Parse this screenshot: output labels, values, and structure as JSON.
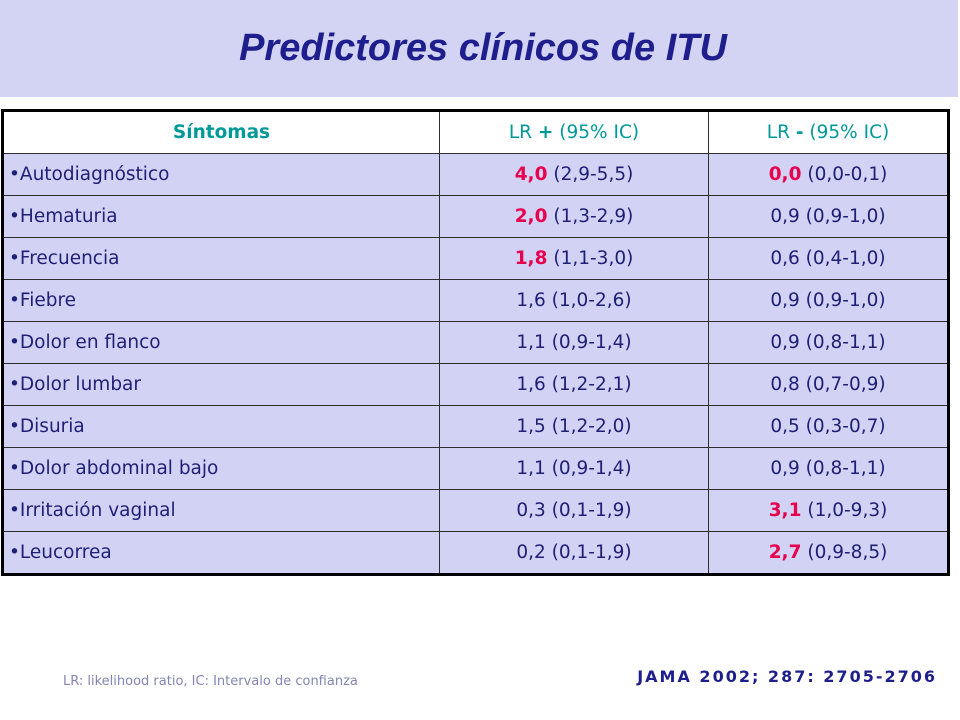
{
  "title": "Predictores clínicos de ITU",
  "table": {
    "headers": {
      "symptoms": "Síntomas",
      "lr_pos": {
        "prefix": "LR ",
        "sign": "+",
        "suffix": " (95% IC)"
      },
      "lr_neg": {
        "prefix": "LR ",
        "sign": "-",
        "suffix": " (95% IC)"
      }
    },
    "bullet": "•",
    "rows": [
      {
        "symptom": "Autodiagnóstico",
        "lr_pos": {
          "value": "4,0",
          "ci": "(2,9-5,5)",
          "highlight": true
        },
        "lr_neg": {
          "value": "0,0",
          "ci": "(0,0-0,1)",
          "highlight": true
        }
      },
      {
        "symptom": "Hematuria",
        "lr_pos": {
          "value": "2,0",
          "ci": "(1,3-2,9)",
          "highlight": true
        },
        "lr_neg": {
          "value": "0,9",
          "ci": "(0,9-1,0)",
          "highlight": false
        }
      },
      {
        "symptom": "Frecuencia",
        "lr_pos": {
          "value": "1,8",
          "ci": "(1,1-3,0)",
          "highlight": true
        },
        "lr_neg": {
          "value": "0,6",
          "ci": "(0,4-1,0)",
          "highlight": false
        }
      },
      {
        "symptom": "Fiebre",
        "lr_pos": {
          "value": "1,6",
          "ci": "(1,0-2,6)",
          "highlight": false
        },
        "lr_neg": {
          "value": "0,9",
          "ci": "(0,9-1,0)",
          "highlight": false
        }
      },
      {
        "symptom": "Dolor en flanco",
        "lr_pos": {
          "value": "1,1",
          "ci": "(0,9-1,4)",
          "highlight": false
        },
        "lr_neg": {
          "value": "0,9",
          "ci": "(0,8-1,1)",
          "highlight": false
        }
      },
      {
        "symptom": "Dolor lumbar",
        "lr_pos": {
          "value": "1,6",
          "ci": "(1,2-2,1)",
          "highlight": false
        },
        "lr_neg": {
          "value": "0,8",
          "ci": "(0,7-0,9)",
          "highlight": false
        }
      },
      {
        "symptom": "Disuria",
        "lr_pos": {
          "value": "1,5",
          "ci": "(1,2-2,0)",
          "highlight": false
        },
        "lr_neg": {
          "value": "0,5",
          "ci": "(0,3-0,7)",
          "highlight": false
        }
      },
      {
        "symptom": "Dolor abdominal bajo",
        "lr_pos": {
          "value": "1,1",
          "ci": "(0,9-1,4)",
          "highlight": false
        },
        "lr_neg": {
          "value": "0,9",
          "ci": "(0,8-1,1)",
          "highlight": false
        }
      },
      {
        "symptom": "Irritación vaginal",
        "lr_pos": {
          "value": "0,3",
          "ci": "(0,1-1,9)",
          "highlight": false
        },
        "lr_neg": {
          "value": "3,1",
          "ci": "(1,0-9,3)",
          "highlight": true
        }
      },
      {
        "symptom": "Leucorrea",
        "lr_pos": {
          "value": "0,2",
          "ci": "(0,1-1,9)",
          "highlight": false
        },
        "lr_neg": {
          "value": "2,7",
          "ci": "(0,9-8,5)",
          "highlight": true
        }
      }
    ]
  },
  "footnote": "LR: likelihood ratio, IC: Intervalo de confianza",
  "citation": "JAMA 2002; 287: 2705-2706",
  "colors": {
    "band": "#d3d3f3",
    "row_bg": "#d2d2f4",
    "title": "#1e1e8c",
    "text": "#1f1f75",
    "header_text": "#009999",
    "highlight": "#e6004e",
    "footnote": "#8585b5",
    "citation": "#1e1e8c"
  }
}
